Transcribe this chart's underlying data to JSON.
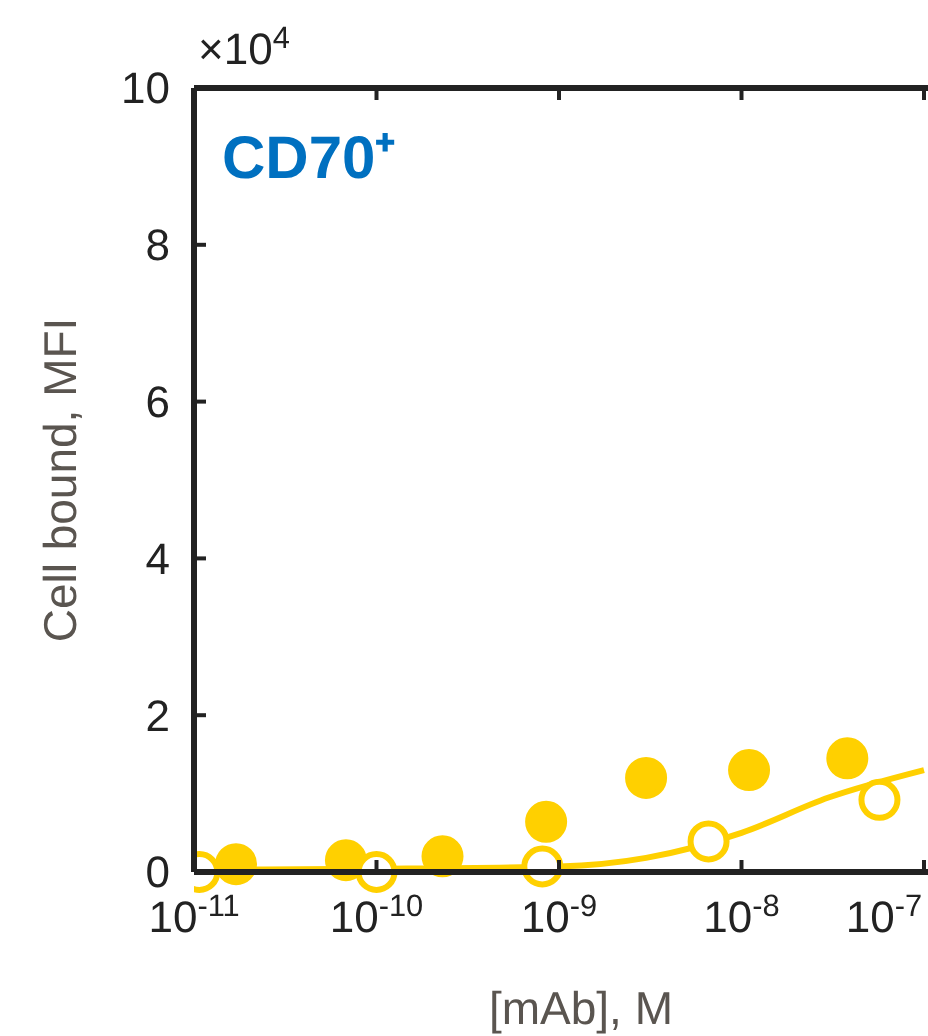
{
  "chart_data": {
    "type": "scatter",
    "title": "CD70⁺",
    "xlabel": "[mAb], M",
    "ylabel": "Cell bound, MFI",
    "annotations": [
      "×10$^{4}$"
    ],
    "log": "x",
    "xlim": [
      1e-11,
      1e-07
    ],
    "xticks": [
      {
        "value": 1e-11,
        "label": "10$^{-11}$"
      },
      {
        "value": 1e-10,
        "label": "10$^{-10}$"
      },
      {
        "value": 1e-09,
        "label": "10$^{-9}$"
      },
      {
        "value": 1e-08,
        "label": "10$^{-8}$"
      },
      {
        "value": 1e-07,
        "label": "10$^{-7}$"
      }
    ],
    "ylim": [
      0,
      10
    ],
    "yticks": [
      0,
      2,
      4,
      6,
      8,
      10
    ],
    "grid": false,
    "series": [
      {
        "color": "#ffd000",
        "marker": "circle",
        "x": [
          1.7e-11,
          6.8e-11,
          2.3e-10,
          8.5e-10,
          3e-09,
          1.1e-08,
          3.8e-08
        ],
        "values": [
          0.1,
          0.15,
          0.2,
          0.64,
          1.2,
          1.3,
          1.45
        ]
      },
      {
        "type": "line",
        "color": "#ffd000",
        "x": [
          1e-11,
          1e-10,
          1e-09,
          3e-09,
          1e-08,
          3e-08,
          1e-07
        ],
        "values": [
          0.03,
          0.04,
          0.07,
          0.18,
          0.5,
          0.95,
          1.3
        ]
      },
      {
        "color": "#ffffff",
        "marker": "circle",
        "x": [
          1.07e-11,
          1e-10,
          8.1e-10,
          6.6e-09,
          5.7e-08
        ],
        "values": [
          0,
          0,
          0.07,
          0.39,
          0.92
        ]
      }
    ]
  }
}
